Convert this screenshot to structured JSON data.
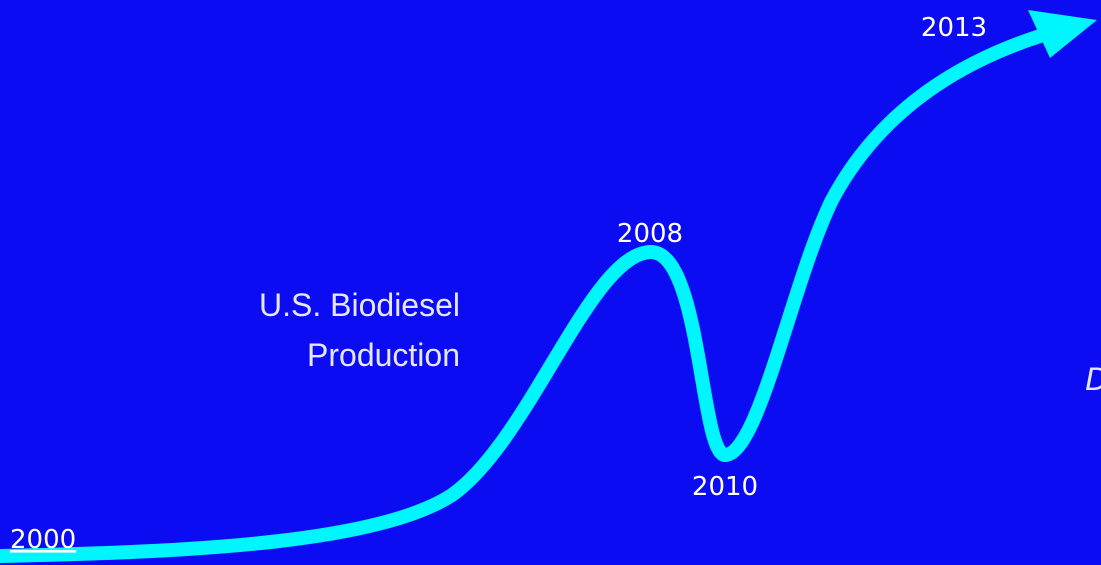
{
  "title_lines": [
    "U.S. Biodiesel",
    "Production"
  ],
  "points": [
    {
      "label": "2000"
    },
    {
      "label": "2008"
    },
    {
      "label": "2010"
    },
    {
      "label": "2013"
    }
  ],
  "edge_text": "D"
}
